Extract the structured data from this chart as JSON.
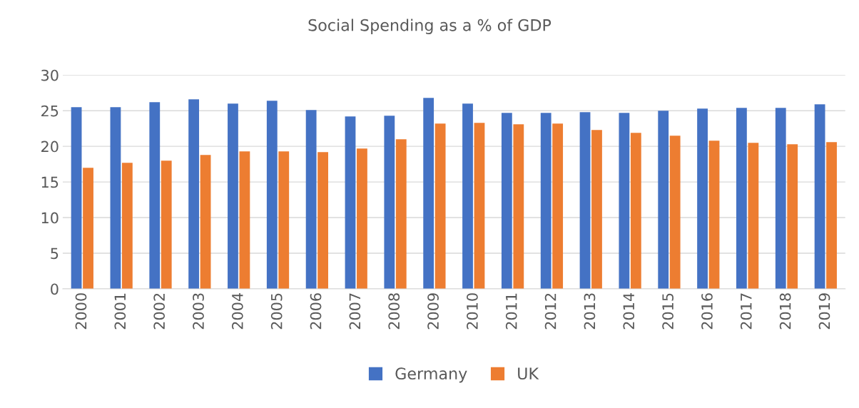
{
  "chart_data": {
    "type": "bar",
    "title": "Social Spending as a % of GDP",
    "categories": [
      "2000",
      "2001",
      "2002",
      "2003",
      "2004",
      "2005",
      "2006",
      "2007",
      "2008",
      "2009",
      "2010",
      "2011",
      "2012",
      "2013",
      "2014",
      "2015",
      "2016",
      "2017",
      "2018",
      "2019"
    ],
    "series": [
      {
        "name": "Germany",
        "color": "#4472c4",
        "values": [
          25.5,
          25.5,
          26.2,
          26.6,
          26.0,
          26.4,
          25.1,
          24.2,
          24.3,
          26.8,
          26.0,
          24.7,
          24.7,
          24.8,
          24.7,
          25.0,
          25.3,
          25.4,
          25.4,
          25.9
        ]
      },
      {
        "name": "UK",
        "color": "#ed7d31",
        "values": [
          17.0,
          17.7,
          18.0,
          18.8,
          19.3,
          19.3,
          19.2,
          19.7,
          21.0,
          23.2,
          23.3,
          23.1,
          23.2,
          22.3,
          21.9,
          21.5,
          20.8,
          20.5,
          20.3,
          20.6
        ]
      }
    ],
    "ylim": [
      0,
      30
    ],
    "yticks": [
      0,
      5,
      10,
      15,
      20,
      25,
      30
    ],
    "grid": "y",
    "legend": "bottom"
  }
}
